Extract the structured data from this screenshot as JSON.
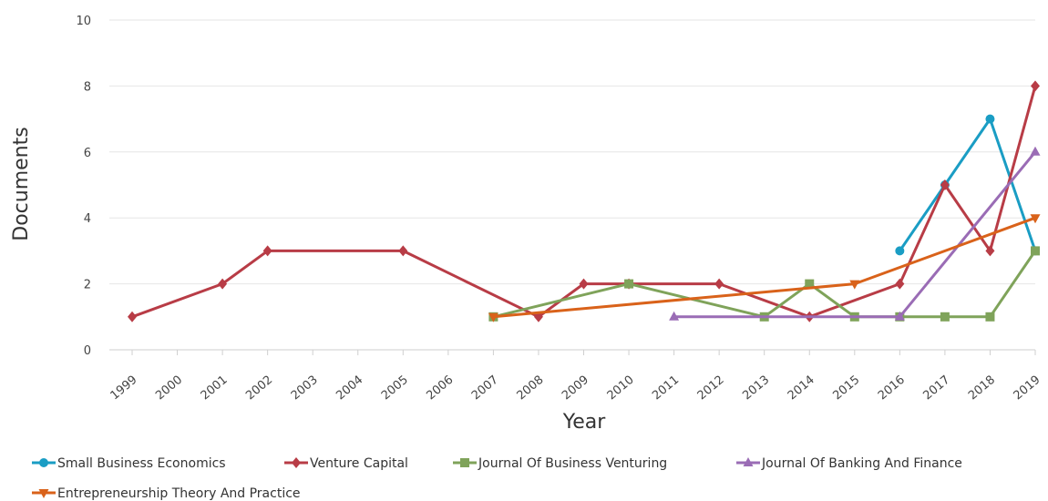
{
  "chart_data": {
    "type": "line",
    "xlabel": "Year",
    "ylabel": "Documents",
    "ylim": [
      0,
      10
    ],
    "yticks": [
      0,
      2,
      4,
      6,
      8,
      10
    ],
    "categories": [
      "1999",
      "2000",
      "2001",
      "2002",
      "2003",
      "2004",
      "2005",
      "2006",
      "2007",
      "2008",
      "2009",
      "2010",
      "2011",
      "2012",
      "2013",
      "2014",
      "2015",
      "2016",
      "2017",
      "2018",
      "2019"
    ],
    "grid": true,
    "legend_position": "bottom",
    "series": [
      {
        "name": "Small Business Economics",
        "color": "#1a9dc4",
        "marker": "circle",
        "points": [
          [
            "2016",
            3
          ],
          [
            "2017",
            5
          ],
          [
            "2018",
            7
          ],
          [
            "2019",
            3
          ]
        ]
      },
      {
        "name": "Venture Capital",
        "color": "#b83c46",
        "marker": "diamond",
        "points": [
          [
            "1999",
            1
          ],
          [
            "2001",
            2
          ],
          [
            "2002",
            3
          ],
          [
            "2005",
            3
          ],
          [
            "2008",
            1
          ],
          [
            "2009",
            2
          ],
          [
            "2010",
            2
          ],
          [
            "2012",
            2
          ],
          [
            "2014",
            1
          ],
          [
            "2016",
            2
          ],
          [
            "2017",
            5
          ],
          [
            "2018",
            3
          ],
          [
            "2019",
            8
          ]
        ]
      },
      {
        "name": "Journal Of Business Venturing",
        "color": "#7fa35a",
        "marker": "square",
        "points": [
          [
            "2007",
            1
          ],
          [
            "2010",
            2
          ],
          [
            "2013",
            1
          ],
          [
            "2014",
            2
          ],
          [
            "2015",
            1
          ],
          [
            "2016",
            1
          ],
          [
            "2017",
            1
          ],
          [
            "2018",
            1
          ],
          [
            "2019",
            3
          ]
        ]
      },
      {
        "name": "Journal Of Banking And Finance",
        "color": "#9a6cb5",
        "marker": "triangle-up",
        "points": [
          [
            "2011",
            1
          ],
          [
            "2016",
            1
          ],
          [
            "2019",
            6
          ]
        ]
      },
      {
        "name": "Entrepreneurship Theory And Practice",
        "color": "#d9621a",
        "marker": "triangle-down",
        "points": [
          [
            "2007",
            1
          ],
          [
            "2015",
            2
          ],
          [
            "2019",
            4
          ]
        ]
      }
    ]
  }
}
